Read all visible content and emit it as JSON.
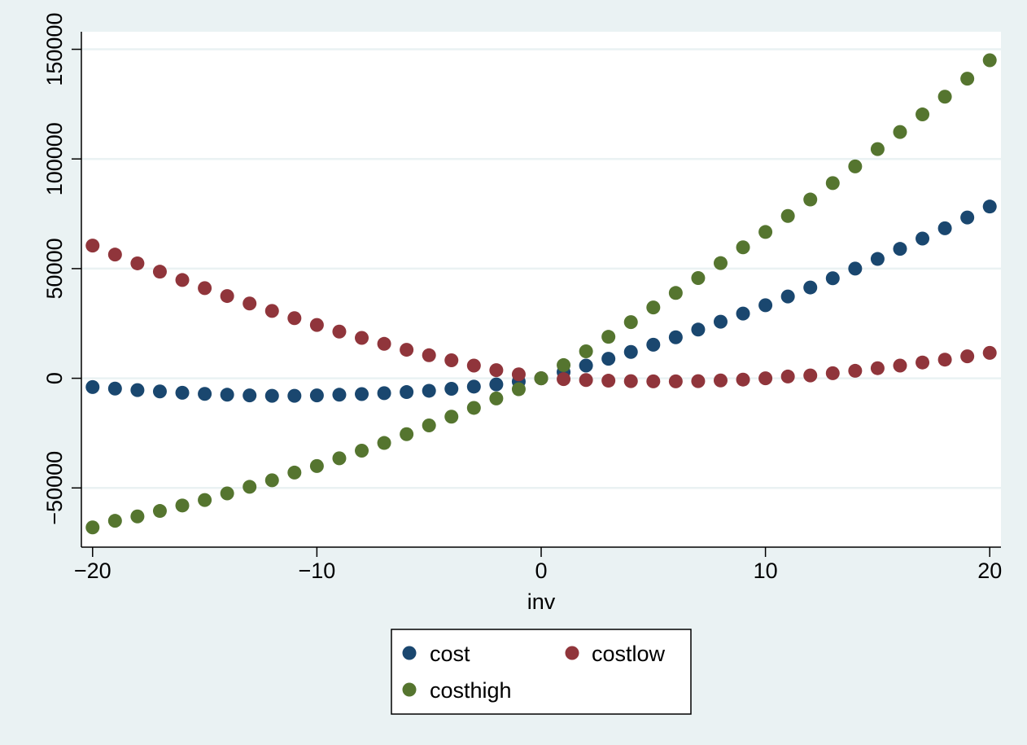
{
  "chart_data": {
    "type": "scatter",
    "title": "",
    "xlabel": "inv",
    "ylabel": "",
    "xlim": [
      -20.5,
      20.5
    ],
    "ylim": [
      -77000,
      158000
    ],
    "x_ticks": [
      -20,
      -10,
      0,
      10,
      20
    ],
    "x_tick_labels": [
      "−20",
      "−10",
      "0",
      "10",
      "20"
    ],
    "y_ticks": [
      -50000,
      0,
      50000,
      100000,
      150000
    ],
    "y_tick_labels": [
      "−50000",
      "0",
      "50000",
      "100000",
      "150000"
    ],
    "grid": "horizontal",
    "legend_position": "bottom",
    "x": [
      -20,
      -19,
      -18,
      -17,
      -16,
      -15,
      -14,
      -13,
      -12,
      -11,
      -10,
      -9,
      -8,
      -7,
      -6,
      -5,
      -4,
      -3,
      -2,
      -1,
      0,
      1,
      2,
      3,
      4,
      5,
      6,
      7,
      8,
      9,
      10,
      11,
      12,
      13,
      14,
      15,
      16,
      17,
      18,
      19,
      20
    ],
    "series": [
      {
        "name": "cost",
        "color": "#1a476f",
        "values": [
          -4000,
          -4700,
          -5400,
          -6000,
          -6600,
          -7100,
          -7500,
          -7800,
          -8000,
          -8000,
          -7800,
          -7500,
          -7200,
          -6800,
          -6300,
          -5700,
          -4800,
          -3800,
          -2800,
          -1500,
          0,
          2800,
          5800,
          8900,
          12000,
          15300,
          18700,
          22200,
          25800,
          29500,
          33300,
          37300,
          41400,
          45600,
          50000,
          54400,
          59000,
          63700,
          68400,
          73300,
          78300
        ]
      },
      {
        "name": "costlow",
        "color": "#90353b",
        "values": [
          60500,
          56400,
          52400,
          48600,
          44800,
          41100,
          37500,
          34100,
          30700,
          27400,
          24300,
          21300,
          18400,
          15700,
          13000,
          10500,
          8200,
          5800,
          3700,
          1800,
          0,
          -400,
          -800,
          -1100,
          -1300,
          -1400,
          -1400,
          -1300,
          -1000,
          -600,
          0,
          800,
          1300,
          2300,
          3400,
          4600,
          5800,
          7200,
          8500,
          10000,
          11600
        ]
      },
      {
        "name": "costhigh",
        "color": "#55752f",
        "values": [
          -68000,
          -65000,
          -63000,
          -60500,
          -58000,
          -55500,
          -52500,
          -49500,
          -46500,
          -43000,
          -40000,
          -36500,
          -33000,
          -29500,
          -25500,
          -21500,
          -17500,
          -13500,
          -9200,
          -5000,
          0,
          6000,
          12300,
          18900,
          25600,
          32300,
          38900,
          45700,
          52500,
          59700,
          66700,
          74000,
          81500,
          89000,
          96600,
          104500,
          112300,
          120300,
          128400,
          136600,
          145000
        ]
      }
    ]
  }
}
